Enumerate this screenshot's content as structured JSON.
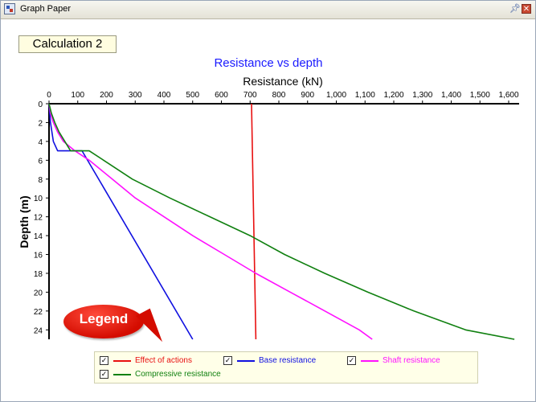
{
  "window": {
    "title": "Graph Paper",
    "pin_icon": "pin-icon",
    "close_icon": "close-icon"
  },
  "calculation_label": "Calculation 2",
  "callout": {
    "text": "Legend"
  },
  "legend": {
    "items": [
      {
        "label": "Effect of actions",
        "color": "#e81010",
        "checked": true
      },
      {
        "label": "Base resistance",
        "color": "#1010e0",
        "checked": true
      },
      {
        "label": "Shaft resistance",
        "color": "#ff10ff",
        "checked": true
      },
      {
        "label": "Compressive resistance",
        "color": "#108010",
        "checked": true
      }
    ]
  },
  "chart_data": {
    "type": "line",
    "title": "Resistance vs depth",
    "xlabel": "Resistance (kN)",
    "ylabel": "Depth (m)",
    "x_axis_position": "top",
    "y_axis_inverted": true,
    "xlim": [
      0,
      1600
    ],
    "ylim": [
      0,
      25
    ],
    "x_ticks": [
      0,
      100,
      200,
      300,
      400,
      500,
      600,
      700,
      800,
      900,
      1000,
      1100,
      1200,
      1300,
      1400,
      1500,
      1600
    ],
    "x_tick_labels": [
      "0",
      "100",
      "200",
      "300",
      "400",
      "500",
      "600",
      "700",
      "800",
      "900",
      "1,000",
      "1,100",
      "1,200",
      "1,300",
      "1,400",
      "1,500",
      "1,600"
    ],
    "y_ticks": [
      0,
      2,
      4,
      6,
      8,
      10,
      12,
      14,
      16,
      18,
      20,
      22,
      24
    ],
    "y_tick_labels": [
      "0",
      "2",
      "4",
      "6",
      "8",
      "10",
      "12",
      "14",
      "16",
      "18",
      "20",
      "22",
      "24"
    ],
    "grid": false,
    "legend_position": "bottom",
    "series": [
      {
        "name": "Effect of actions",
        "color": "#e81010",
        "points": [
          [
            705,
            0
          ],
          [
            720,
            25
          ]
        ]
      },
      {
        "name": "Base resistance",
        "color": "#1010e0",
        "points": [
          [
            0,
            0
          ],
          [
            5,
            2
          ],
          [
            15,
            4
          ],
          [
            30,
            5
          ],
          [
            115,
            5
          ],
          [
            500,
            25
          ]
        ]
      },
      {
        "name": "Shaft resistance",
        "color": "#ff10ff",
        "points": [
          [
            0,
            0
          ],
          [
            5,
            1
          ],
          [
            15,
            2
          ],
          [
            30,
            3
          ],
          [
            50,
            4
          ],
          [
            90,
            5
          ],
          [
            140,
            6
          ],
          [
            220,
            8
          ],
          [
            300,
            10
          ],
          [
            400,
            12
          ],
          [
            500,
            14
          ],
          [
            610,
            16
          ],
          [
            720,
            18
          ],
          [
            840,
            20
          ],
          [
            960,
            22
          ],
          [
            1080,
            24
          ],
          [
            1125,
            25
          ]
        ]
      },
      {
        "name": "Compressive resistance",
        "color": "#108010",
        "points": [
          [
            0,
            0
          ],
          [
            8,
            1
          ],
          [
            20,
            2
          ],
          [
            35,
            3
          ],
          [
            55,
            4
          ],
          [
            75,
            5
          ],
          [
            140,
            5
          ],
          [
            190,
            6
          ],
          [
            290,
            8
          ],
          [
            420,
            10
          ],
          [
            560,
            12
          ],
          [
            700,
            14
          ],
          [
            820,
            16
          ],
          [
            960,
            18
          ],
          [
            1110,
            20
          ],
          [
            1270,
            22
          ],
          [
            1450,
            24
          ],
          [
            1620,
            25
          ]
        ]
      }
    ]
  }
}
